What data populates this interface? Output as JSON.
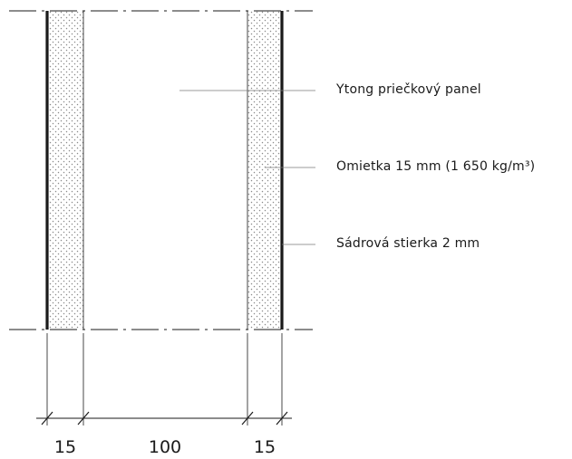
{
  "colors": {
    "line": "#1a1a1a",
    "leader": "#7a7a7a",
    "dots": "#8a8a8a",
    "background": "#ffffff"
  },
  "labels": {
    "panel": "Ytong priečkový panel",
    "plaster": "Omietka 15 mm (1 650 kg/m³)",
    "skim": "Sádrová stierka 2 mm"
  },
  "dimensions": {
    "left_plaster": "15",
    "panel": "100",
    "right_plaster": "15"
  }
}
